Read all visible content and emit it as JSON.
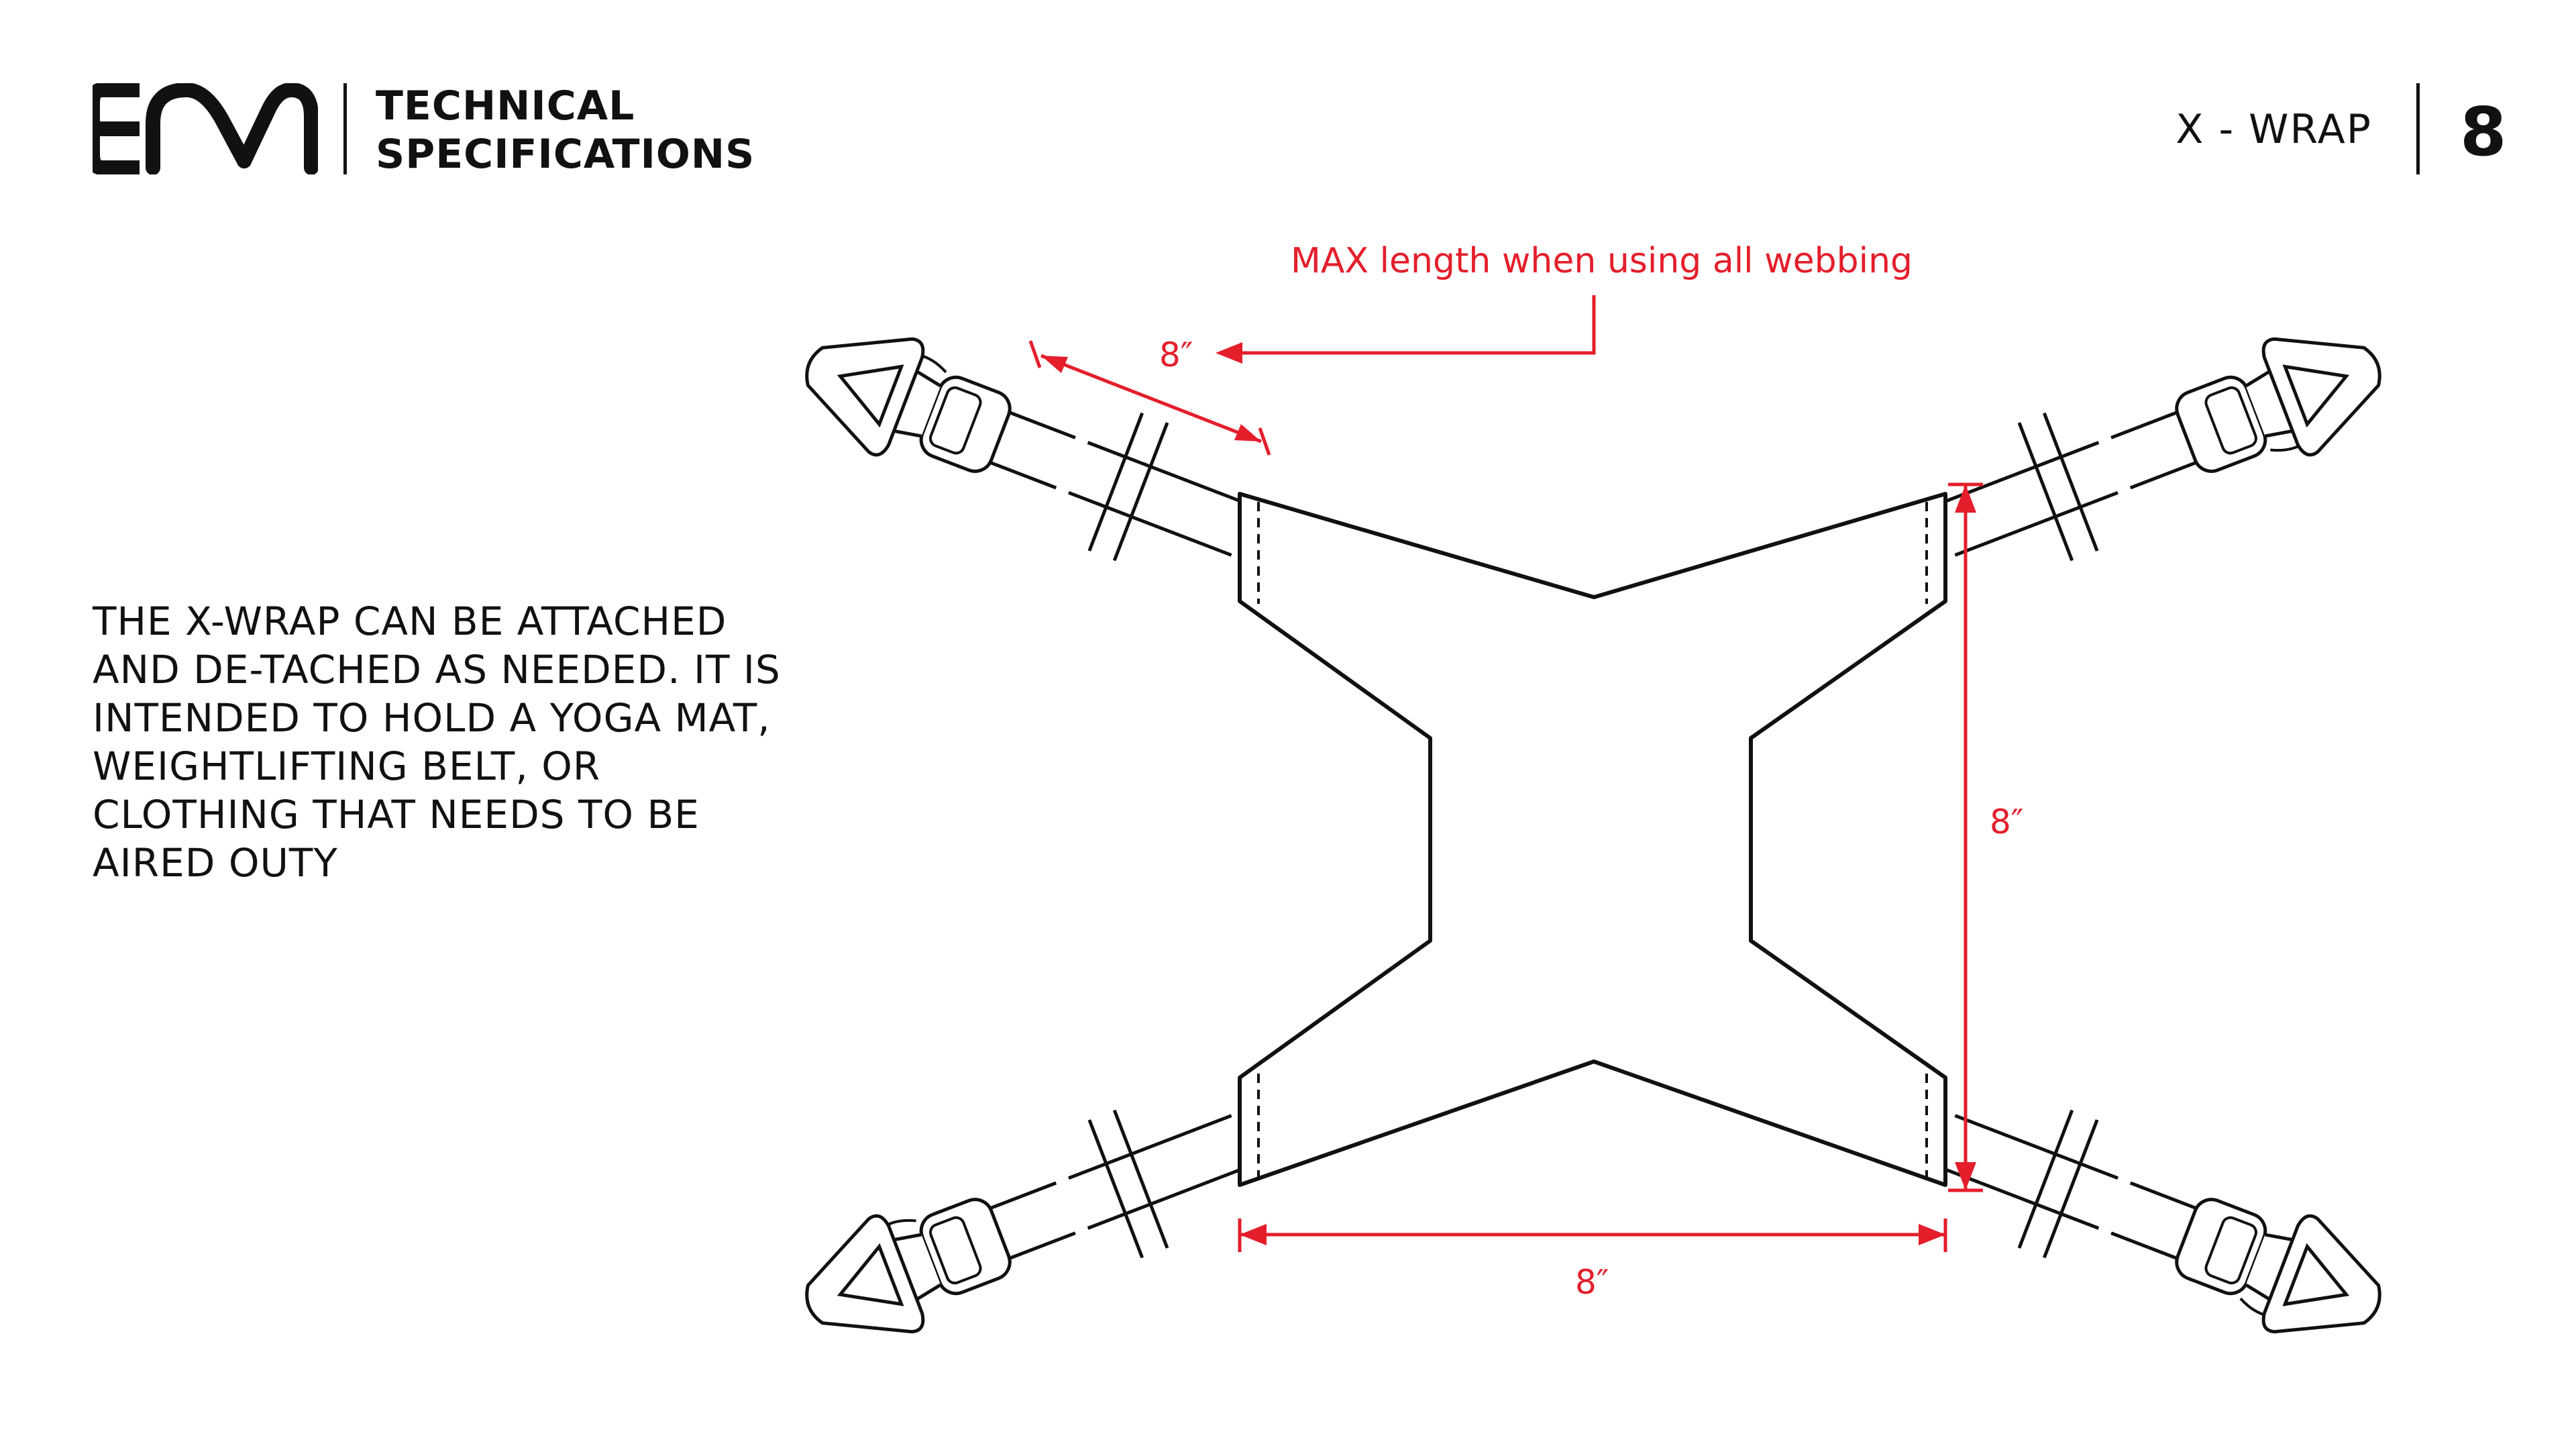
{
  "header": {
    "logo_icon": "em-brand-logo",
    "title_lines": [
      "TECHNICAL",
      "SPECIFICATIONS"
    ],
    "product_name": "X - WRAP",
    "page_number": "8"
  },
  "description": {
    "lines": [
      "THE X-WRAP CAN BE ATTACHED",
      "AND DE-TACHED AS NEEDED. IT IS",
      "INTENDED TO HOLD A YOGA MAT,",
      "WEIGHTLIFTING BELT, OR",
      "CLOTHING THAT NEEDS TO BE",
      "AIRED OUTY"
    ]
  },
  "diagram": {
    "callout": "MAX length when using all webbing",
    "dimensions": {
      "strap_length": "8″",
      "height": "8″",
      "width": "8″"
    },
    "colors": {
      "outline": "#111111",
      "dimension": "#e41e2b"
    }
  }
}
